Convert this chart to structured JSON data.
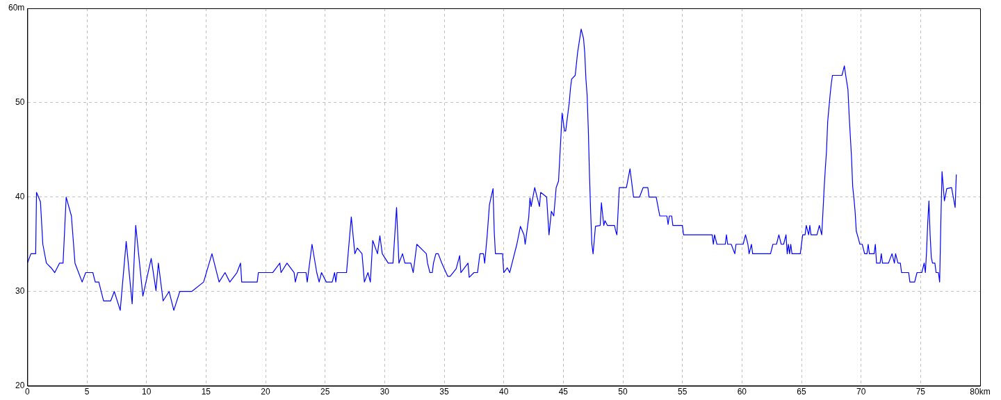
{
  "chart_data": {
    "type": "line",
    "xlim": [
      0,
      80
    ],
    "ylim": [
      20,
      60
    ],
    "xticks": [
      0,
      5,
      10,
      15,
      20,
      25,
      30,
      35,
      40,
      45,
      50,
      55,
      60,
      65,
      70,
      75,
      {
        "value": 80,
        "label": "80km"
      }
    ],
    "yticks": [
      20,
      30,
      40,
      50,
      {
        "value": 60,
        "label": "60m"
      }
    ],
    "grid": true,
    "marker": "none",
    "line_style": "solid",
    "series": [
      {
        "color": "#0000ff",
        "x": [
          0,
          0.3,
          0.7,
          0.77,
          1.1,
          1.3,
          1.6,
          2.0,
          2.3,
          2.7,
          3.0,
          3.26,
          3.7,
          4.0,
          4.3,
          4.6,
          4.9,
          5.5,
          5.7,
          6.0,
          6.4,
          7.0,
          7.3,
          7.8,
          8.3,
          8.8,
          9.1,
          9.7,
          10.4,
          10.8,
          11.0,
          11.4,
          11.9,
          12.3,
          12.8,
          13.8,
          14.8,
          15.5,
          16.1,
          16.6,
          17.0,
          17.6,
          17.9,
          18.0,
          19.3,
          19.4,
          20.6,
          21.2,
          21.3,
          21.8,
          22.4,
          22.5,
          22.7,
          23.4,
          23.5,
          23.9,
          24.3,
          24.5,
          24.7,
          25.1,
          25.6,
          25.8,
          25.9,
          26.0,
          26.8,
          27.2,
          27.5,
          27.7,
          28.1,
          28.3,
          28.6,
          28.8,
          29.0,
          29.4,
          29.6,
          29.8,
          30.3,
          30.7,
          31.0,
          31.2,
          31.5,
          31.7,
          32.2,
          32.4,
          32.7,
          33.5,
          33.6,
          33.8,
          34.0,
          34.1,
          34.3,
          34.5,
          34.8,
          35.3,
          35.5,
          36.0,
          36.3,
          36.4,
          37.0,
          37.1,
          37.5,
          37.8,
          38.0,
          38.3,
          38.4,
          38.6,
          38.8,
          39.1,
          39.2,
          39.3,
          39.9,
          40.0,
          40.3,
          40.5,
          40.7,
          41.1,
          41.4,
          41.7,
          41.8,
          42.1,
          42.2,
          42.3,
          42.6,
          43.0,
          43.1,
          43.6,
          43.8,
          44.0,
          44.2,
          44.4,
          44.6,
          44.8,
          44.9,
          45.1,
          45.2,
          45.3,
          45.5,
          45.6,
          45.7,
          46.0,
          46.2,
          46.5,
          46.7,
          46.8,
          46.9,
          47.0,
          47.1,
          47.2,
          47.3,
          47.4,
          47.5,
          47.7,
          48.1,
          48.2,
          48.4,
          48.5,
          48.7,
          49.3,
          49.4,
          49.5,
          49.7,
          50.3,
          50.6,
          50.9,
          51.4,
          51.7,
          52.1,
          52.2,
          52.8,
          53.1,
          53.7,
          53.8,
          53.9,
          54.1,
          54.2,
          55.0,
          55.1,
          57.5,
          57.6,
          57.7,
          57.9,
          58.6,
          58.7,
          58.8,
          59.1,
          59.4,
          59.5,
          59.8,
          60.1,
          60.3,
          60.5,
          60.6,
          60.8,
          60.9,
          62.4,
          62.6,
          62.9,
          63.1,
          63.3,
          63.5,
          63.7,
          63.8,
          63.9,
          64.0,
          64.1,
          64.2,
          64.9,
          65.1,
          65.3,
          65.4,
          65.6,
          65.7,
          65.8,
          66.3,
          66.5,
          66.7,
          66.8,
          66.9,
          67.0,
          67.1,
          67.2,
          67.4,
          67.5,
          67.6,
          68.4,
          68.6,
          68.7,
          68.9,
          69.0,
          69.2,
          69.3,
          69.4,
          69.5,
          69.6,
          69.8,
          69.9,
          70.1,
          70.3,
          70.5,
          70.6,
          70.7,
          71.1,
          71.2,
          71.3,
          71.6,
          71.7,
          71.8,
          72.3,
          72.6,
          72.8,
          72.9,
          73.1,
          73.3,
          73.4,
          74.0,
          74.1,
          74.5,
          74.7,
          75.1,
          75.3,
          75.4,
          75.5,
          75.6,
          75.7,
          75.8,
          75.9,
          76.0,
          76.2,
          76.3,
          76.5,
          76.6,
          76.7,
          76.8,
          77.0,
          77.2,
          77.6,
          77.8,
          77.9,
          78.0
        ],
        "values": [
          33,
          34,
          34,
          40.5,
          39.5,
          35,
          33,
          32.5,
          32,
          33,
          33,
          40,
          38,
          33,
          32,
          31,
          32,
          32,
          31,
          31,
          29,
          29,
          30,
          28,
          35.3,
          28.7,
          37,
          29.5,
          33.5,
          30.1,
          33,
          29,
          30,
          28,
          30,
          30,
          31,
          34,
          31,
          32,
          31,
          32,
          33,
          31,
          31,
          32,
          32,
          33,
          32,
          33,
          32,
          31,
          32,
          32,
          31,
          35,
          32,
          31,
          32,
          31,
          31,
          32,
          31,
          32,
          32,
          37.9,
          34,
          34.6,
          34,
          31,
          32,
          31,
          35.4,
          34,
          35.9,
          34,
          33,
          33,
          38.9,
          33,
          34,
          33,
          33,
          32,
          35,
          34,
          33,
          32,
          32,
          33,
          34,
          34,
          33,
          31.6,
          31.6,
          32.4,
          33.8,
          32,
          33,
          31.5,
          32,
          32,
          34,
          34,
          33,
          35.8,
          39.2,
          40.9,
          36.4,
          34,
          34,
          32,
          32.5,
          32,
          33,
          35,
          36.9,
          36,
          35,
          37.9,
          39.9,
          39,
          41,
          39,
          40.5,
          40,
          36,
          38.5,
          38,
          41,
          41.7,
          46.4,
          48.9,
          47,
          47,
          48,
          50,
          51.5,
          52.5,
          52.9,
          55.3,
          57.8,
          56.8,
          55.3,
          52.5,
          50.8,
          47.2,
          42.3,
          38.3,
          35,
          34,
          36.9,
          37,
          39.4,
          37,
          37.5,
          37,
          37,
          36.4,
          36,
          41,
          41,
          43,
          40,
          40,
          41,
          41,
          40,
          40,
          38,
          38,
          37.1,
          38,
          38,
          37,
          37,
          36,
          36,
          35,
          36,
          35,
          35,
          36,
          35,
          35,
          34,
          35,
          35,
          35,
          36,
          35,
          34,
          35,
          34,
          34,
          35,
          35,
          36,
          35,
          35,
          36,
          34,
          35,
          34,
          35,
          34,
          34,
          36,
          36,
          37,
          36,
          37,
          36,
          36,
          37,
          36,
          38.4,
          40.9,
          43,
          44.9,
          48,
          50.8,
          52,
          52.9,
          52.9,
          53.9,
          53,
          51.4,
          48.7,
          44.2,
          41.1,
          39.9,
          38.5,
          36.4,
          35.5,
          35,
          35,
          34,
          34,
          35,
          34,
          34,
          35,
          33,
          33,
          34,
          33,
          33,
          34,
          33,
          34,
          33,
          33,
          32,
          32,
          31,
          31,
          32,
          32,
          33,
          32,
          34.2,
          37.3,
          39.6,
          36,
          33.6,
          33,
          33,
          32,
          32,
          31,
          37.3,
          42.7,
          39.6,
          40.9,
          41,
          39.6,
          38.9,
          42.4
        ]
      }
    ]
  }
}
